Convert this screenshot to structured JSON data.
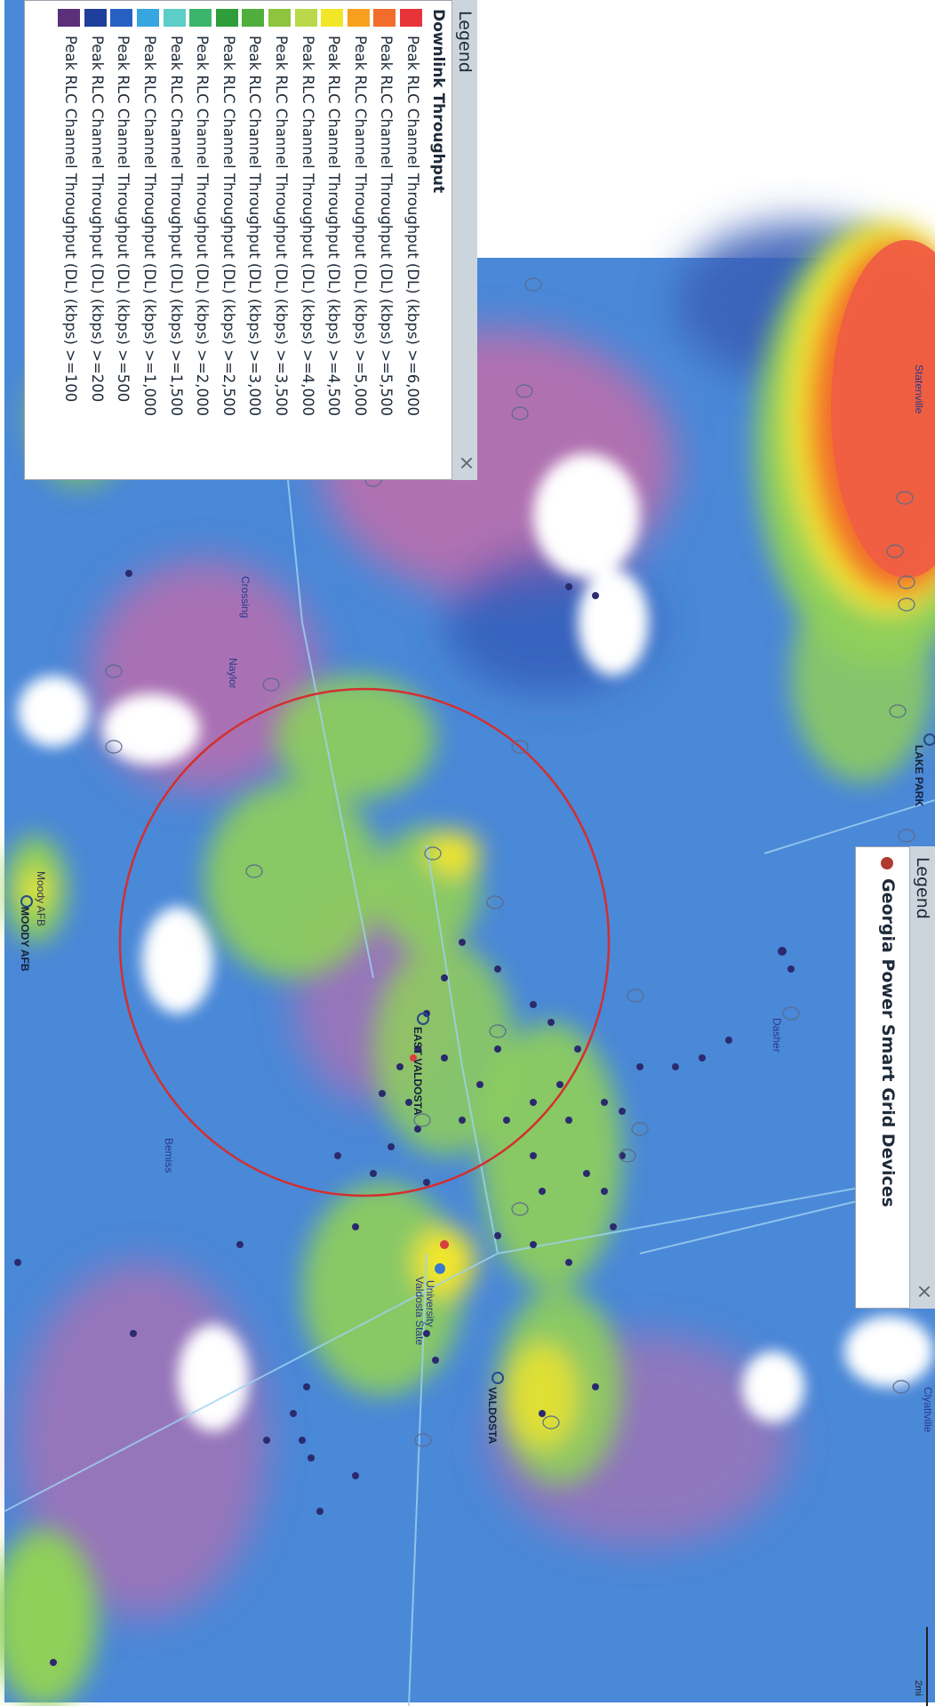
{
  "colors": {
    "map_base": "#4a88d8",
    "throughput_ramp": [
      "#e8333b",
      "#f26d2c",
      "#f7a020",
      "#f2e629",
      "#b9d94a",
      "#8fc43e",
      "#4fae3c",
      "#2e9e3b",
      "#3bb56a",
      "#5ccdc7",
      "#36a6e0",
      "#2760c3",
      "#1f3f9c",
      "#5b2f7a"
    ],
    "coverage_circle": "#d32f2f",
    "device_dot": "#2b2a6e",
    "device_legend_dot": "#b03a2e"
  },
  "legend_throughput": {
    "title": "Legend",
    "close": "×",
    "group": "Downlink Throughput",
    "items": [
      {
        "label": "Peak RLC Channel Throughput (DL) (kbps) >=6,000",
        "color": "#e8333b"
      },
      {
        "label": "Peak RLC Channel Throughput (DL) (kbps) >=5,500",
        "color": "#f26d2c"
      },
      {
        "label": "Peak RLC Channel Throughput (DL) (kbps) >=5,000",
        "color": "#f7a020"
      },
      {
        "label": "Peak RLC Channel Throughput (DL) (kbps) >=4,500",
        "color": "#f2e629"
      },
      {
        "label": "Peak RLC Channel Throughput (DL) (kbps) >=4,000",
        "color": "#b9d94a"
      },
      {
        "label": "Peak RLC Channel Throughput (DL) (kbps) >=3,500",
        "color": "#8fc43e"
      },
      {
        "label": "Peak RLC Channel Throughput (DL) (kbps) >=3,000",
        "color": "#4fae3c"
      },
      {
        "label": "Peak RLC Channel Throughput (DL) (kbps) >=2,500",
        "color": "#2e9e3b"
      },
      {
        "label": "Peak RLC Channel Throughput (DL) (kbps) >=2,000",
        "color": "#3bb56a"
      },
      {
        "label": "Peak RLC Channel Throughput (DL) (kbps) >=1,500",
        "color": "#5ccdc7"
      },
      {
        "label": "Peak RLC Channel Throughput (DL) (kbps) >=1,000",
        "color": "#36a6e0"
      },
      {
        "label": "Peak RLC Channel Throughput (DL) (kbps) >=500",
        "color": "#2760c3"
      },
      {
        "label": "Peak RLC Channel Throughput (DL) (kbps) >=200",
        "color": "#1f3f9c"
      },
      {
        "label": "Peak RLC Channel Throughput (DL) (kbps) >=100",
        "color": "#5b2f7a"
      }
    ]
  },
  "legend_devices": {
    "title": "Legend",
    "close": "×",
    "item": "Georgia Power Smart Grid Devices"
  },
  "map_labels": {
    "moody_afb": "MOODY AFB",
    "moody_afb_area": "Moody AFB",
    "east_valdosta": "EAST VALDOSTA",
    "valdosta": "VALDOSTA",
    "lake_park": "LAKE PARK",
    "bemiss": "Bemiss",
    "naylor": "Naylor",
    "crossing": "Crossing",
    "clyatville": "Clyattville",
    "statenville": "Statenville",
    "dasher": "Dasher",
    "valdosta_state": "Valdosta State",
    "university": "University",
    "scale": "2mi"
  }
}
